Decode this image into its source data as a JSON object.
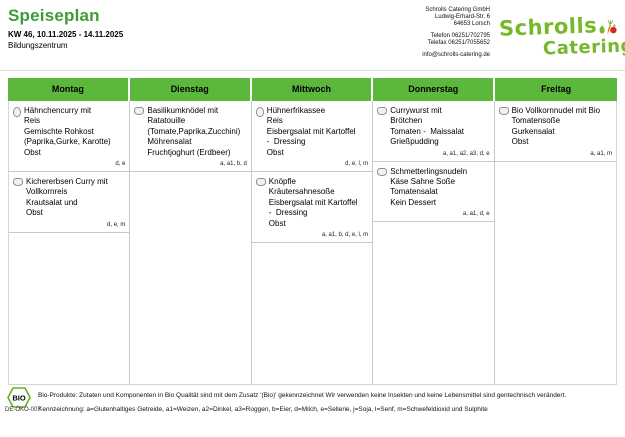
{
  "header": {
    "title": "Speiseplan",
    "week": "KW 46, 10.11.2025 - 14.11.2025",
    "location": "Bildungszentrum",
    "company": {
      "name": "Schrolls Catering GmbH",
      "street": "Ludwig-Erhard-Str. 6",
      "city": "64653 Lorsch",
      "phone": "Telefon 06251/702795",
      "fax": "Telefax 06251/7055652",
      "email": "info@schrolls-catering.de"
    },
    "logo": {
      "line1": "Schrolls",
      "line2": "Catering"
    }
  },
  "colors": {
    "table_header_green": "#5cb83c",
    "title_green": "#3e9c36",
    "logo_green": "#76b82a",
    "carrot_orange": "#e87722",
    "apple_red": "#d52b1e"
  },
  "menu": {
    "days": [
      {
        "label": "Montag",
        "meals": [
          {
            "icon": "poultry-icon",
            "lines": [
              "Hähnchencurry mit",
              "Reis",
              "Gemischte Rohkost",
              "(Paprika,Gurke, Karotte)",
              "Obst"
            ],
            "allergens": "d, e"
          },
          {
            "icon": "dish-icon",
            "lines": [
              "Kichererbsen Curry mit",
              "Vollkornreis",
              "Krautsalat und",
              "Obst"
            ],
            "allergens": "d, e, m"
          }
        ]
      },
      {
        "label": "Dienstag",
        "meals": [
          {
            "icon": "dish-icon",
            "lines": [
              "Basilikumknödel mit",
              "Ratatouille",
              "(Tomate,Paprika,Zucchini)",
              "Möhrensalat",
              "Fruchtjoghurt (Erdbeer)"
            ],
            "allergens": "a, a1, b, d"
          }
        ]
      },
      {
        "label": "Mittwoch",
        "meals": [
          {
            "icon": "poultry-icon",
            "lines": [
              "Hühnerfrikassee",
              "Reis",
              "Eisbergsalat mit Kartoffel",
              "-  Dressing",
              "Obst"
            ],
            "allergens": "d, e, l, m"
          },
          {
            "icon": "dish-icon",
            "lines": [
              "Knöpfle",
              "Kräutersahnesoße",
              "Eisbergsalat mit Kartoffel",
              "-  Dressing",
              "Obst"
            ],
            "allergens": "a, a1, b, d, e, l, m"
          }
        ]
      },
      {
        "label": "Donnerstag",
        "meals": [
          {
            "icon": "dish-icon",
            "lines": [
              "Currywurst mit",
              "Brötchen",
              "Tomaten -  Maissalat",
              "Grießpudding"
            ],
            "allergens": "a, a1, a2, a3, d, e"
          },
          {
            "icon": "dish-icon",
            "lines": [
              "Schmetterlingsnudeln",
              "Käse Sahne Soße",
              "Tomatensalat",
              "Kein Dessert"
            ],
            "allergens": "a, a1, d, e"
          }
        ]
      },
      {
        "label": "Freitag",
        "meals": [
          {
            "icon": "dish-icon",
            "lines": [
              "Bio Vollkornnudel mit Bio",
              "Tomatensoße",
              "Gurkensalat",
              "Obst"
            ],
            "allergens": "a, a1, m"
          }
        ]
      }
    ]
  },
  "footer": {
    "bio_seal_text": "BIO",
    "bio_code": "DE-ÖKO-007",
    "bio_note": "Bio-Produkte: Zutaten und Komponenten in Bio Qualität sind mit dem Zusatz '(Bio)' gekennzeichnet Wir verwenden keine Insekten und keine Lebensmittel sind gentechnisch verändert.",
    "legend": "Kennzeichnung: a=Glutenhaltiges Getreide, a1=Weizen, a2=Dinkel, a3=Roggen, b=Eier, d=Milch, e=Sellerie, j=Soja, l=Senf, m=Schwefeldioxid und Sulphite"
  }
}
